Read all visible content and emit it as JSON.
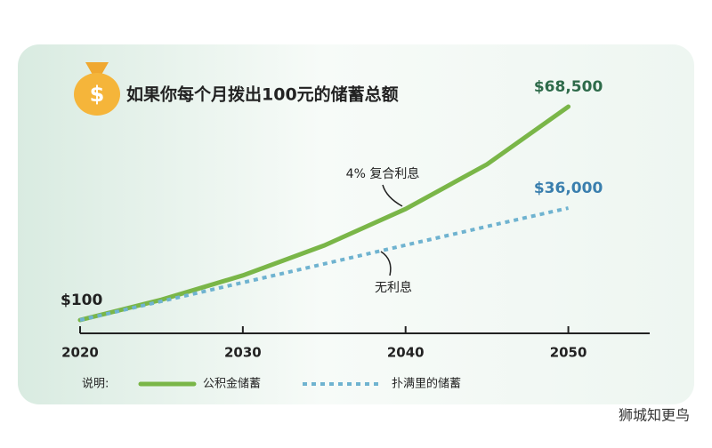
{
  "chart_data": {
    "type": "line",
    "title": "如果你每个月拨出100元的储蓄总额",
    "x": [
      2020,
      2025,
      2030,
      2035,
      2040,
      2045,
      2050
    ],
    "xlim": [
      2020,
      2055
    ],
    "xticks": [
      2020,
      2030,
      2040,
      2050
    ],
    "series": [
      {
        "name": "公积金储蓄",
        "color": "#7ab648",
        "dash": false,
        "label_color": "#2e6b4a",
        "values": [
          100,
          6600,
          14400,
          24000,
          35700,
          50000,
          68500
        ],
        "value_labels": [
          "$100",
          null,
          null,
          null,
          null,
          null,
          "$68,500"
        ]
      },
      {
        "name": "扑满里的储蓄",
        "color": "#6fb3d0",
        "dash": true,
        "label_color": "#3a7fae",
        "values": [
          100,
          6100,
          12100,
          18100,
          24100,
          30100,
          36000
        ],
        "value_labels": [
          null,
          null,
          null,
          null,
          null,
          null,
          "$36,000"
        ]
      }
    ],
    "annotations": [
      "4% 复合利息",
      "无利息"
    ],
    "legend_title": "说明:",
    "watermark": "狮城知更鸟"
  }
}
